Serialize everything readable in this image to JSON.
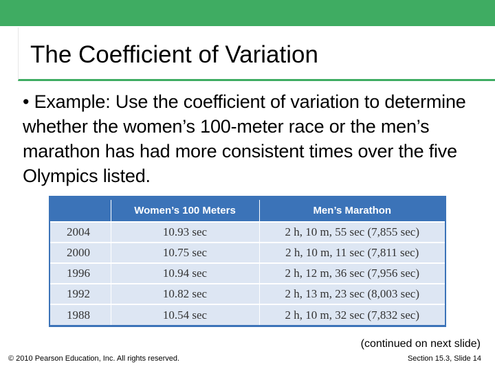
{
  "colors": {
    "accent": "#3fac62",
    "table_header": "#3b73b8",
    "table_cell": "#dde6f3"
  },
  "title": "The Coefficient of Variation",
  "body": {
    "bullet": "•",
    "text": "Example: Use the coefficient of variation to determine whether the women’s 100-meter race or the men’s marathon has had more consistent times over the five Olympics listed."
  },
  "table": {
    "headers": [
      "",
      "Women’s 100 Meters",
      "Men’s Marathon"
    ],
    "rows": [
      [
        "2004",
        "10.93 sec",
        "2 h, 10 m, 55 sec (7,855 sec)"
      ],
      [
        "2000",
        "10.75 sec",
        "2 h, 10 m, 11 sec (7,811 sec)"
      ],
      [
        "1996",
        "10.94 sec",
        "2 h, 12 m, 36 sec (7,956 sec)"
      ],
      [
        "1992",
        "10.82 sec",
        "2 h, 13 m, 23 sec (8,003 sec)"
      ],
      [
        "1988",
        "10.54 sec",
        "2 h, 10 m, 32 sec (7,832 sec)"
      ]
    ]
  },
  "continued": "(continued on next slide)",
  "footer": {
    "copyright": "© 2010 Pearson Education, Inc. All rights reserved.",
    "section": "Section 15.3, Slide 14"
  }
}
